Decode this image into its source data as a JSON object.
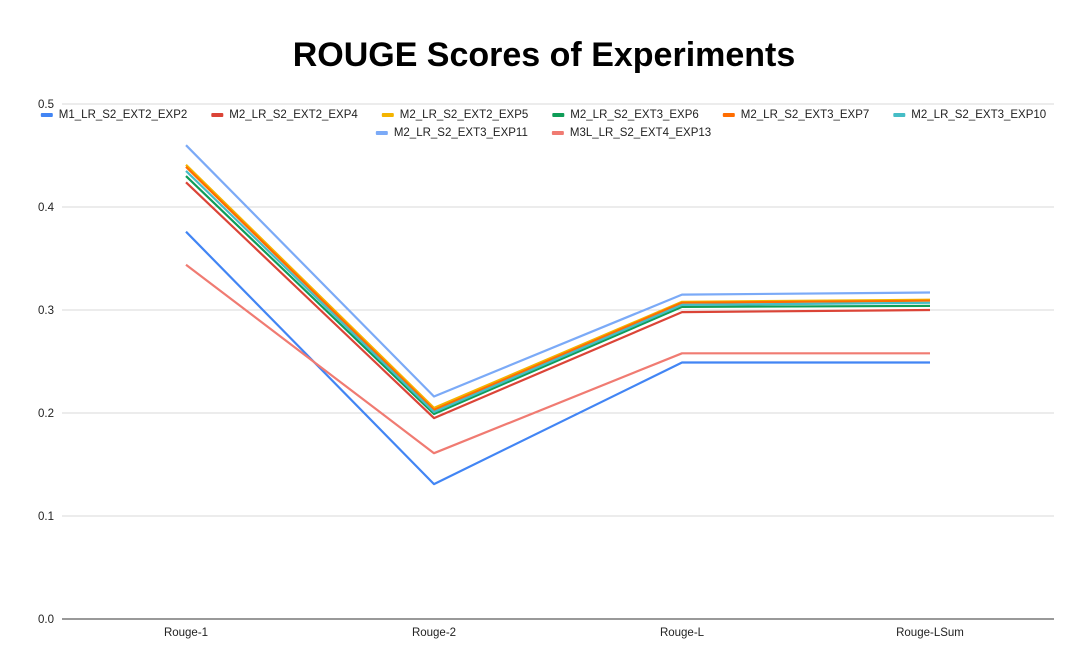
{
  "chart_data": {
    "type": "line",
    "title": "ROUGE Scores of Experiments",
    "xlabel": "",
    "ylabel": "",
    "categories": [
      "Rouge-1",
      "Rouge-2",
      "Rouge-L",
      "Rouge-LSum"
    ],
    "ylim": [
      0,
      0.5
    ],
    "yticks": [
      "0.0",
      "0.1",
      "0.2",
      "0.3",
      "0.4",
      "0.5"
    ],
    "grid": true,
    "legend_position": "top",
    "series": [
      {
        "name": "M1_LR_S2_EXT2_EXP2",
        "color": "#4285f4",
        "values": [
          0.376,
          0.131,
          0.249,
          0.249
        ]
      },
      {
        "name": "M2_LR_S2_EXT2_EXP4",
        "color": "#db4437",
        "values": [
          0.424,
          0.195,
          0.298,
          0.3
        ]
      },
      {
        "name": "M2_LR_S2_EXT2_EXP5",
        "color": "#f4b400",
        "values": [
          0.441,
          0.205,
          0.308,
          0.31
        ]
      },
      {
        "name": "M2_LR_S2_EXT3_EXP6",
        "color": "#0f9d58",
        "values": [
          0.43,
          0.199,
          0.303,
          0.304
        ]
      },
      {
        "name": "M2_LR_S2_EXT3_EXP7",
        "color": "#ff6d01",
        "values": [
          0.439,
          0.203,
          0.307,
          0.309
        ]
      },
      {
        "name": "M2_LR_S2_EXT3_EXP10",
        "color": "#46bdc6",
        "values": [
          0.435,
          0.201,
          0.305,
          0.307
        ]
      },
      {
        "name": "M2_LR_S2_EXT3_EXP11",
        "color": "#7baaf7",
        "values": [
          0.46,
          0.216,
          0.315,
          0.317
        ]
      },
      {
        "name": "M3L_LR_S2_EXT4_EXP13",
        "color": "#f07b72",
        "values": [
          0.344,
          0.161,
          0.258,
          0.258
        ]
      }
    ]
  }
}
